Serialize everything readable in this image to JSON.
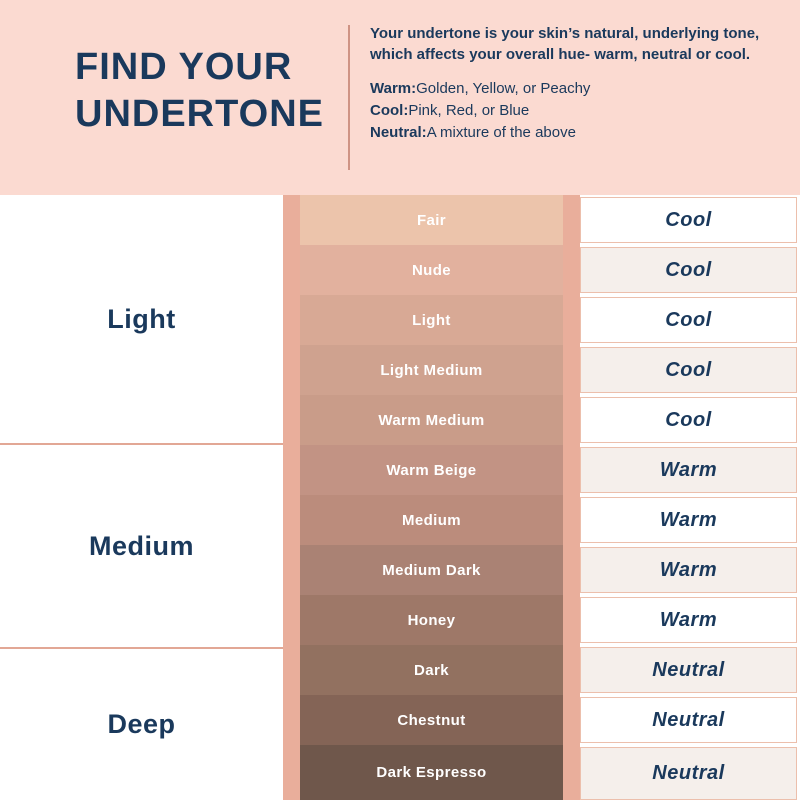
{
  "header": {
    "title_line1": "FIND YOUR",
    "title_line2": "UNDERTONE",
    "description": "Your undertone is your skin’s natural, underlying tone, which affects your overall hue- warm, neutral or cool.",
    "definitions": [
      {
        "term": "Warm:",
        "text": "Golden, Yellow, or Peachy"
      },
      {
        "term": "Cool:",
        "text": "Pink, Red, or Blue"
      },
      {
        "term": "Neutral:",
        "text": "A mixture of the above"
      }
    ]
  },
  "depth_groups": [
    {
      "label": "Light",
      "row_count": 5
    },
    {
      "label": "Medium",
      "row_count": 4
    },
    {
      "label": "Deep",
      "row_count": 3
    }
  ],
  "rows": [
    {
      "shade": "Fair",
      "swatch_color": "#ECC4AB",
      "undertone": "Cool"
    },
    {
      "shade": "Nude",
      "swatch_color": "#E2B19E",
      "undertone": "Cool"
    },
    {
      "shade": "Light",
      "swatch_color": "#D8A995",
      "undertone": "Cool"
    },
    {
      "shade": "Light Medium",
      "swatch_color": "#CFA28F",
      "undertone": "Cool"
    },
    {
      "shade": "Warm Medium",
      "swatch_color": "#C99C89",
      "undertone": "Cool"
    },
    {
      "shade": "Warm Beige",
      "swatch_color": "#C29384",
      "undertone": "Warm"
    },
    {
      "shade": "Medium",
      "swatch_color": "#BB8C7C",
      "undertone": "Warm"
    },
    {
      "shade": "Medium Dark",
      "swatch_color": "#AA8274",
      "undertone": "Warm"
    },
    {
      "shade": "Honey",
      "swatch_color": "#9E7868",
      "undertone": "Warm"
    },
    {
      "shade": "Dark",
      "swatch_color": "#927160",
      "undertone": "Neutral"
    },
    {
      "shade": "Chestnut",
      "swatch_color": "#846456",
      "undertone": "Neutral"
    },
    {
      "shade": "Dark Espresso",
      "swatch_color": "#6F574B",
      "undertone": "Neutral"
    }
  ],
  "colors": {
    "header_bg": "#FBDAD1",
    "navy": "#1A395C",
    "pink_strip": "#E9AE9B",
    "header_divider": "#CF9384",
    "group_divider": "#E2A795",
    "row_alt_bg": "#F5EFEB",
    "cell_border": "#ECBFAC"
  }
}
